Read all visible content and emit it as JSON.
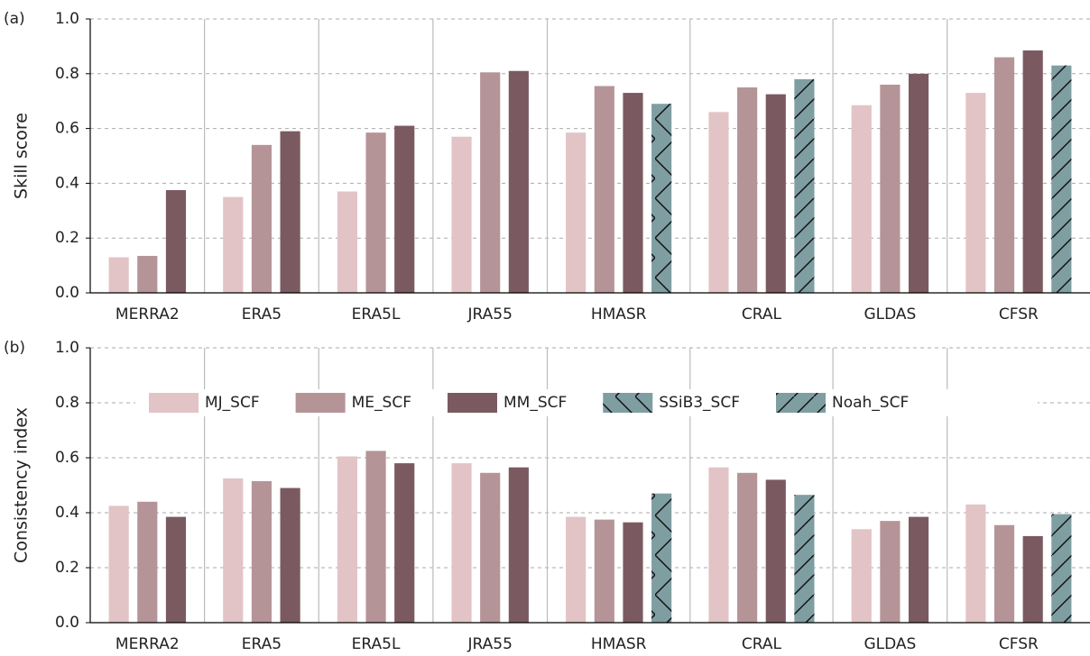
{
  "chart_data": [
    {
      "type": "bar",
      "panel_label": "(a)",
      "y_label": "Skill score",
      "categories": [
        "MERRA2",
        "ERA5",
        "ERA5L",
        "JRA55",
        "HMASR",
        "CRAL",
        "GLDAS",
        "CFSR"
      ],
      "series": [
        {
          "name": "MJ_SCF",
          "color": "#e2c4c6",
          "values": [
            0.13,
            0.35,
            0.37,
            0.57,
            0.585,
            0.66,
            0.685,
            0.73
          ]
        },
        {
          "name": "ME_SCF",
          "color": "#b59498",
          "values": [
            0.135,
            0.54,
            0.585,
            0.805,
            0.755,
            0.75,
            0.76,
            0.86
          ]
        },
        {
          "name": "MM_SCF",
          "color": "#7a5a60",
          "values": [
            0.375,
            0.59,
            0.61,
            0.81,
            0.73,
            0.725,
            0.8,
            0.885
          ]
        },
        {
          "name": "SSiB3_SCF",
          "color": "#7f9ea2",
          "hatch": "x",
          "values": [
            null,
            null,
            null,
            null,
            0.69,
            null,
            null,
            null
          ]
        },
        {
          "name": "Noah_SCF",
          "color": "#7f9ea2",
          "hatch": "/",
          "values": [
            null,
            null,
            null,
            null,
            null,
            0.78,
            null,
            0.83
          ]
        }
      ],
      "ylim": [
        0,
        1
      ],
      "yticks": [
        {
          "value": 0,
          "label": "0.0"
        },
        0.2,
        0.4,
        0.6,
        0.8,
        {
          "value": 1,
          "label": "1.0"
        }
      ],
      "grid": true
    },
    {
      "type": "bar",
      "panel_label": "(b)",
      "y_label": "Consistency index",
      "categories": [
        "MERRA2",
        "ERA5",
        "ERA5L",
        "JRA55",
        "HMASR",
        "CRAL",
        "GLDAS",
        "CFSR"
      ],
      "series": [
        {
          "name": "MJ_SCF",
          "color": "#e2c4c6",
          "values": [
            0.425,
            0.525,
            0.605,
            0.58,
            0.385,
            0.565,
            0.34,
            0.43
          ]
        },
        {
          "name": "ME_SCF",
          "color": "#b59498",
          "values": [
            0.44,
            0.515,
            0.625,
            0.545,
            0.375,
            0.545,
            0.37,
            0.355
          ]
        },
        {
          "name": "MM_SCF",
          "color": "#7a5a60",
          "values": [
            0.385,
            0.49,
            0.58,
            0.565,
            0.365,
            0.52,
            0.385,
            0.315
          ]
        },
        {
          "name": "SSiB3_SCF",
          "color": "#7f9ea2",
          "hatch": "x",
          "values": [
            null,
            null,
            null,
            null,
            0.47,
            null,
            null,
            null
          ]
        },
        {
          "name": "Noah_SCF",
          "color": "#7f9ea2",
          "hatch": "/",
          "values": [
            null,
            null,
            null,
            null,
            null,
            0.465,
            null,
            0.395
          ]
        }
      ],
      "ylim": [
        0,
        1
      ],
      "yticks": [
        {
          "value": 0,
          "label": "0.0"
        },
        0.2,
        0.4,
        0.6,
        0.8,
        {
          "value": 1,
          "label": "1.0"
        }
      ],
      "grid": true,
      "legend": "upper center"
    }
  ]
}
